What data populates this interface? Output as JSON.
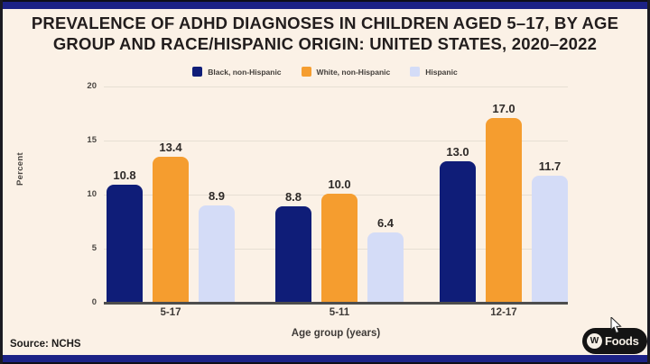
{
  "header": {
    "title_lines": [
      "PREVALENCE OF ADHD DIAGNOSES IN CHILDREN AGED 5–17, BY AGE",
      "GROUP AND RACE/HISPANIC ORIGIN: UNITED STATES, 2020–2022"
    ]
  },
  "chart_data": {
    "type": "bar",
    "title": "Prevalence of ADHD diagnoses in children aged 5–17, by age group and race/Hispanic origin: United States, 2020–2022",
    "xlabel": "Age group (years)",
    "ylabel": "Percent",
    "categories": [
      "5-17",
      "5-11",
      "12-17"
    ],
    "series": [
      {
        "name": "Black, non-Hispanic",
        "color": "#0f1d78",
        "values": [
          10.8,
          8.8,
          13.0
        ]
      },
      {
        "name": "White, non-Hispanic",
        "color": "#f59d2f",
        "values": [
          13.4,
          10.0,
          17.0
        ]
      },
      {
        "name": "Hispanic",
        "color": "#d4dcf7",
        "values": [
          8.9,
          6.4,
          11.7
        ]
      }
    ],
    "ylim": [
      0,
      20
    ],
    "yticks": [
      0,
      5,
      10,
      15,
      20
    ],
    "grid": true,
    "legend_position": "top",
    "value_labels": true
  },
  "footer": {
    "source": "Source: NCHS",
    "logo_icon": "W",
    "logo_text": "Foods"
  },
  "colors": {
    "background": "#fbf1e6",
    "banner": "#1c2286",
    "axis": "#4d4d4d",
    "gridline": "#e6dfd3",
    "title_text": "#221d1d",
    "body_text": "#423e3a"
  }
}
